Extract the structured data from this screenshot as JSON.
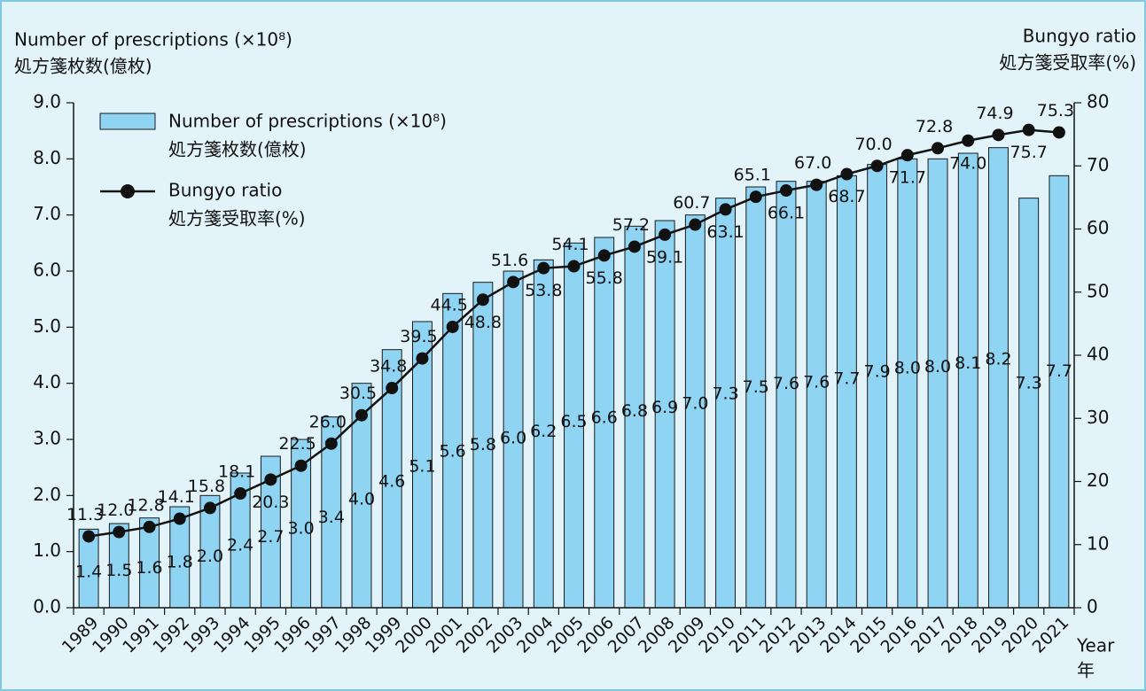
{
  "chart_data": {
    "type": "bar_line",
    "y_label": "Number of prescriptions (×10⁸)",
    "y_label_jp": "処方箋枚数(億枚)",
    "y2_label": "Bungyo ratio",
    "y2_label_jp": "処方箋受取率(%)",
    "x_label": "Year",
    "x_label_jp": "年",
    "categories": [
      "1989",
      "1990",
      "1991",
      "1992",
      "1993",
      "1994",
      "1995",
      "1996",
      "1997",
      "1998",
      "1999",
      "2000",
      "2001",
      "2002",
      "2003",
      "2004",
      "2005",
      "2006",
      "2007",
      "2008",
      "2009",
      "2010",
      "2011",
      "2012",
      "2013",
      "2014",
      "2015",
      "2016",
      "2017",
      "2018",
      "2019",
      "2020",
      "2021"
    ],
    "series": [
      {
        "name": "Number of prescriptions (×10⁸)",
        "name_jp": "処方箋枚数(億枚)",
        "type": "bar",
        "color": "#8fd4f2",
        "values": [
          1.4,
          1.5,
          1.6,
          1.8,
          2.0,
          2.4,
          2.7,
          3.0,
          3.4,
          4.0,
          4.6,
          5.1,
          5.6,
          5.8,
          6.0,
          6.2,
          6.5,
          6.6,
          6.8,
          6.9,
          7.0,
          7.3,
          7.5,
          7.6,
          7.6,
          7.7,
          7.9,
          8.0,
          8.0,
          8.1,
          8.2,
          7.3,
          7.7
        ],
        "value_labels": [
          "1.4",
          "1.5",
          "1.6",
          "1.8",
          "2.0",
          "2.4",
          "2.7",
          "3.0",
          "3.4",
          "4.0",
          "4.6",
          "5.1",
          "5.6",
          "5.8",
          "6.0",
          "6.2",
          "6.5",
          "6.6",
          "6.8",
          "6.9",
          "7.0",
          "7.3",
          "7.5",
          "7.6",
          "7.6",
          "7.7",
          "7.9",
          "8.0",
          "8.0",
          "8.1",
          "8.2",
          "7.3",
          "7.7"
        ]
      },
      {
        "name": "Bungyo ratio",
        "name_jp": "処方箋受取率(%)",
        "type": "line",
        "color": "#111111",
        "axis": "y2",
        "values": [
          11.3,
          12.0,
          12.8,
          14.1,
          15.8,
          18.1,
          20.3,
          22.5,
          26.0,
          30.5,
          34.8,
          39.5,
          44.5,
          48.8,
          51.6,
          53.8,
          54.1,
          55.8,
          57.2,
          59.1,
          60.7,
          63.1,
          65.1,
          66.1,
          67.0,
          68.7,
          70.0,
          71.7,
          72.8,
          74.0,
          74.9,
          75.7,
          75.3
        ],
        "value_labels": [
          "11.3",
          "12.0",
          "12.8",
          "14.1",
          "15.8",
          "18.1",
          "20.3",
          "22.5",
          "26.0",
          "30.5",
          "34.8",
          "39.5",
          "44.5",
          "48.8",
          "51.6",
          "53.8",
          "54.1",
          "55.8",
          "57.2",
          "59.1",
          "60.7",
          "63.1",
          "65.1",
          "66.1",
          "67.0",
          "68.7",
          "70.0",
          "71.7",
          "72.8",
          "74.0",
          "74.9",
          "75.7",
          "75.3"
        ]
      }
    ],
    "ylim": [
      0,
      9
    ],
    "yticks": [
      {
        "value": 0,
        "label": "0.0"
      },
      {
        "value": 1,
        "label": "1.0"
      },
      {
        "value": 2,
        "label": "2.0"
      },
      {
        "value": 3,
        "label": "3.0"
      },
      {
        "value": 4,
        "label": "4.0"
      },
      {
        "value": 5,
        "label": "5.0"
      },
      {
        "value": 6,
        "label": "6.0"
      },
      {
        "value": 7,
        "label": "7.0"
      },
      {
        "value": 8,
        "label": "8.0"
      },
      {
        "value": 9,
        "label": "9.0"
      }
    ],
    "y2lim": [
      0,
      80
    ],
    "y2ticks": [
      0,
      10,
      20,
      30,
      40,
      50,
      60,
      70,
      80
    ]
  }
}
